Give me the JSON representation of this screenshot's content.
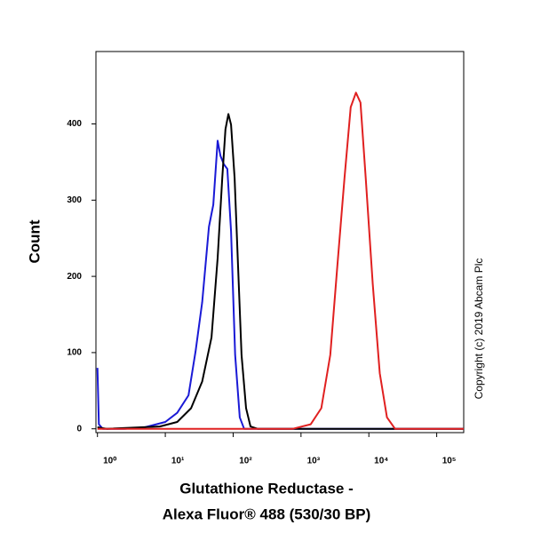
{
  "chart_data": {
    "type": "line",
    "xlabel": [
      "Glutathione Reductase -",
      "Alexa Fluor® 488 (530/30 BP)"
    ],
    "ylabel": "Count",
    "annotation": "Copyright (c) 2019 Abcam Plc",
    "xscale": "log",
    "xlim": [
      0.95,
      250000
    ],
    "ylim": [
      -5,
      495
    ],
    "xticks": [
      {
        "value": 1,
        "label": "10⁰"
      },
      {
        "value": 10,
        "label": "10¹"
      },
      {
        "value": 100,
        "label": "10²"
      },
      {
        "value": 1000,
        "label": "10³"
      },
      {
        "value": 10000,
        "label": "10⁴"
      },
      {
        "value": 100000,
        "label": "10⁵"
      }
    ],
    "yticks": [
      0,
      100,
      200,
      300,
      400
    ],
    "series": [
      {
        "color": "#1a1ad6",
        "x": [
          1,
          1.05,
          1.2,
          2.5,
          5,
          10,
          15,
          22,
          28,
          35,
          44,
          51,
          59,
          65,
          73,
          82,
          93,
          107,
          125,
          145,
          310,
          250000
        ],
        "values": [
          80,
          6,
          0,
          0,
          2,
          9,
          21,
          44,
          102,
          166,
          265,
          294,
          378,
          358,
          347,
          341,
          259,
          97,
          15,
          0,
          0,
          0
        ]
      },
      {
        "color": "#000000",
        "x": [
          1,
          1.37,
          8.3,
          15,
          24,
          35,
          48,
          59,
          69,
          77,
          85,
          93,
          105,
          118,
          133,
          155,
          180,
          229,
          250000
        ],
        "values": [
          2,
          0,
          3,
          9,
          27,
          62,
          120,
          224,
          329,
          393,
          413,
          399,
          329,
          213,
          97,
          27,
          3,
          0,
          0
        ]
      },
      {
        "color": "#e02020",
        "x": [
          1,
          760,
          1390,
          1990,
          2700,
          3430,
          4370,
          5400,
          6460,
          7520,
          9000,
          11400,
          14500,
          18500,
          24300,
          250000
        ],
        "values": [
          0,
          0,
          6,
          27,
          97,
          213,
          329,
          422,
          441,
          428,
          329,
          190,
          73,
          15,
          0,
          0
        ]
      }
    ]
  }
}
